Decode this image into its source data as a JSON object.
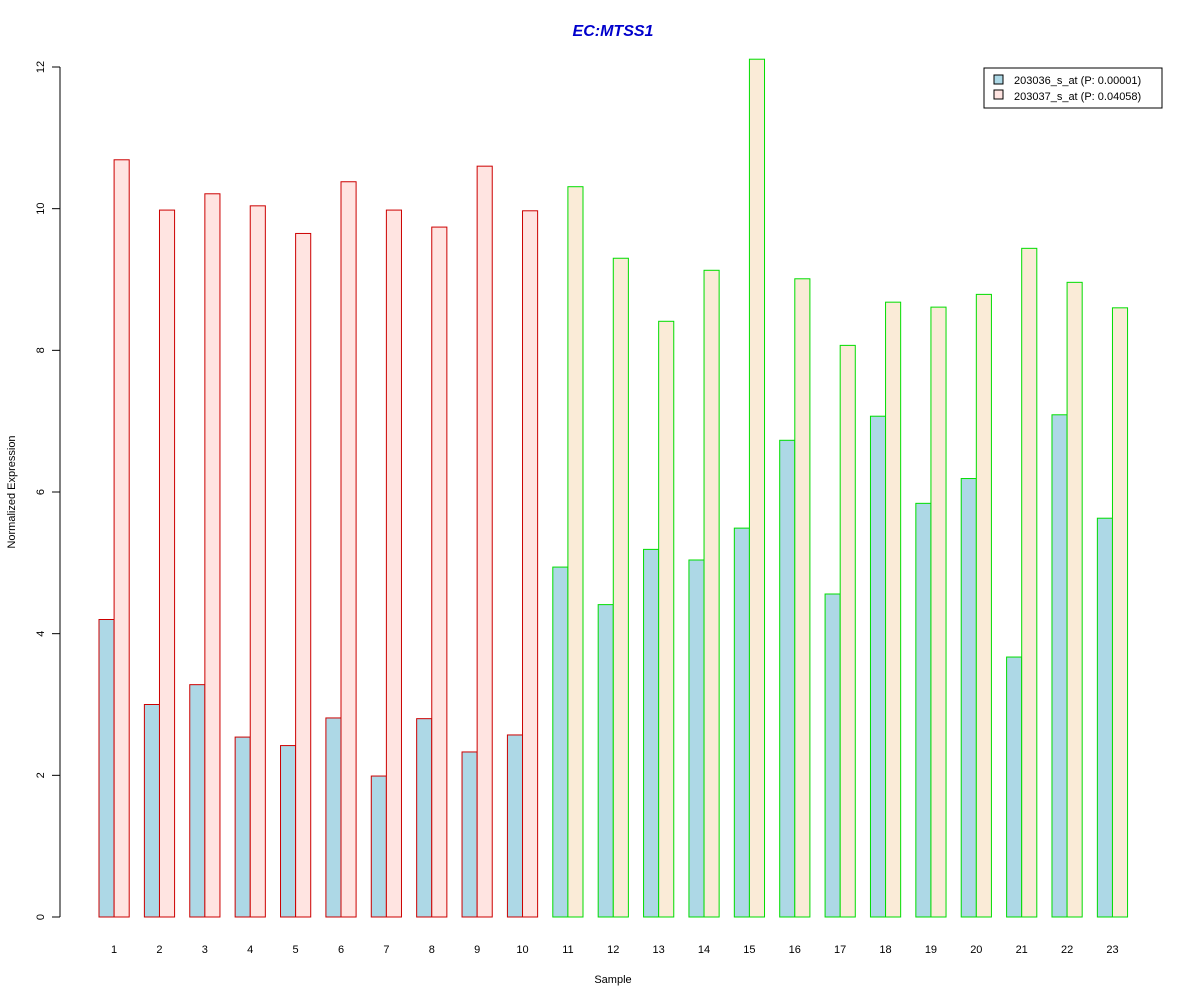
{
  "chart_data": {
    "type": "bar",
    "title": "EC:MTSS1",
    "xlabel": "Sample",
    "ylabel": "Normalized Expression",
    "ylim": [
      0,
      12
    ],
    "yticks": [
      "0",
      "2",
      "4",
      "6",
      "8",
      "10",
      "12"
    ],
    "categories": [
      "1",
      "2",
      "3",
      "4",
      "5",
      "6",
      "7",
      "8",
      "9",
      "10",
      "11",
      "12",
      "13",
      "14",
      "15",
      "16",
      "17",
      "18",
      "19",
      "20",
      "21",
      "22",
      "23"
    ],
    "group_sizes": [
      10,
      13
    ],
    "series": [
      {
        "name": "203036_s_at (P: 0.00001)",
        "fill": "#add8e6",
        "values": [
          4.2,
          3.0,
          3.28,
          2.54,
          2.42,
          2.81,
          1.99,
          2.8,
          2.33,
          2.57,
          4.94,
          4.41,
          5.19,
          5.04,
          5.49,
          6.73,
          4.56,
          7.07,
          5.84,
          6.19,
          3.67,
          7.09,
          5.63
        ]
      },
      {
        "name": "203037_s_at (P: 0.04058)",
        "fill_group1": "#ffe4e1",
        "fill_group2": "#faebd7",
        "values": [
          10.69,
          9.98,
          10.21,
          10.04,
          9.65,
          10.38,
          9.98,
          9.74,
          10.6,
          9.97,
          10.31,
          9.3,
          8.41,
          9.13,
          12.11,
          9.01,
          8.07,
          8.68,
          8.61,
          8.79,
          9.44,
          8.96,
          8.6
        ]
      }
    ],
    "group_border_colors": [
      "#cc0000",
      "#00dd00"
    ],
    "legend_position": "top-right",
    "grid": false
  },
  "colors": {
    "title": "#0000cc",
    "axis": "#000000"
  }
}
